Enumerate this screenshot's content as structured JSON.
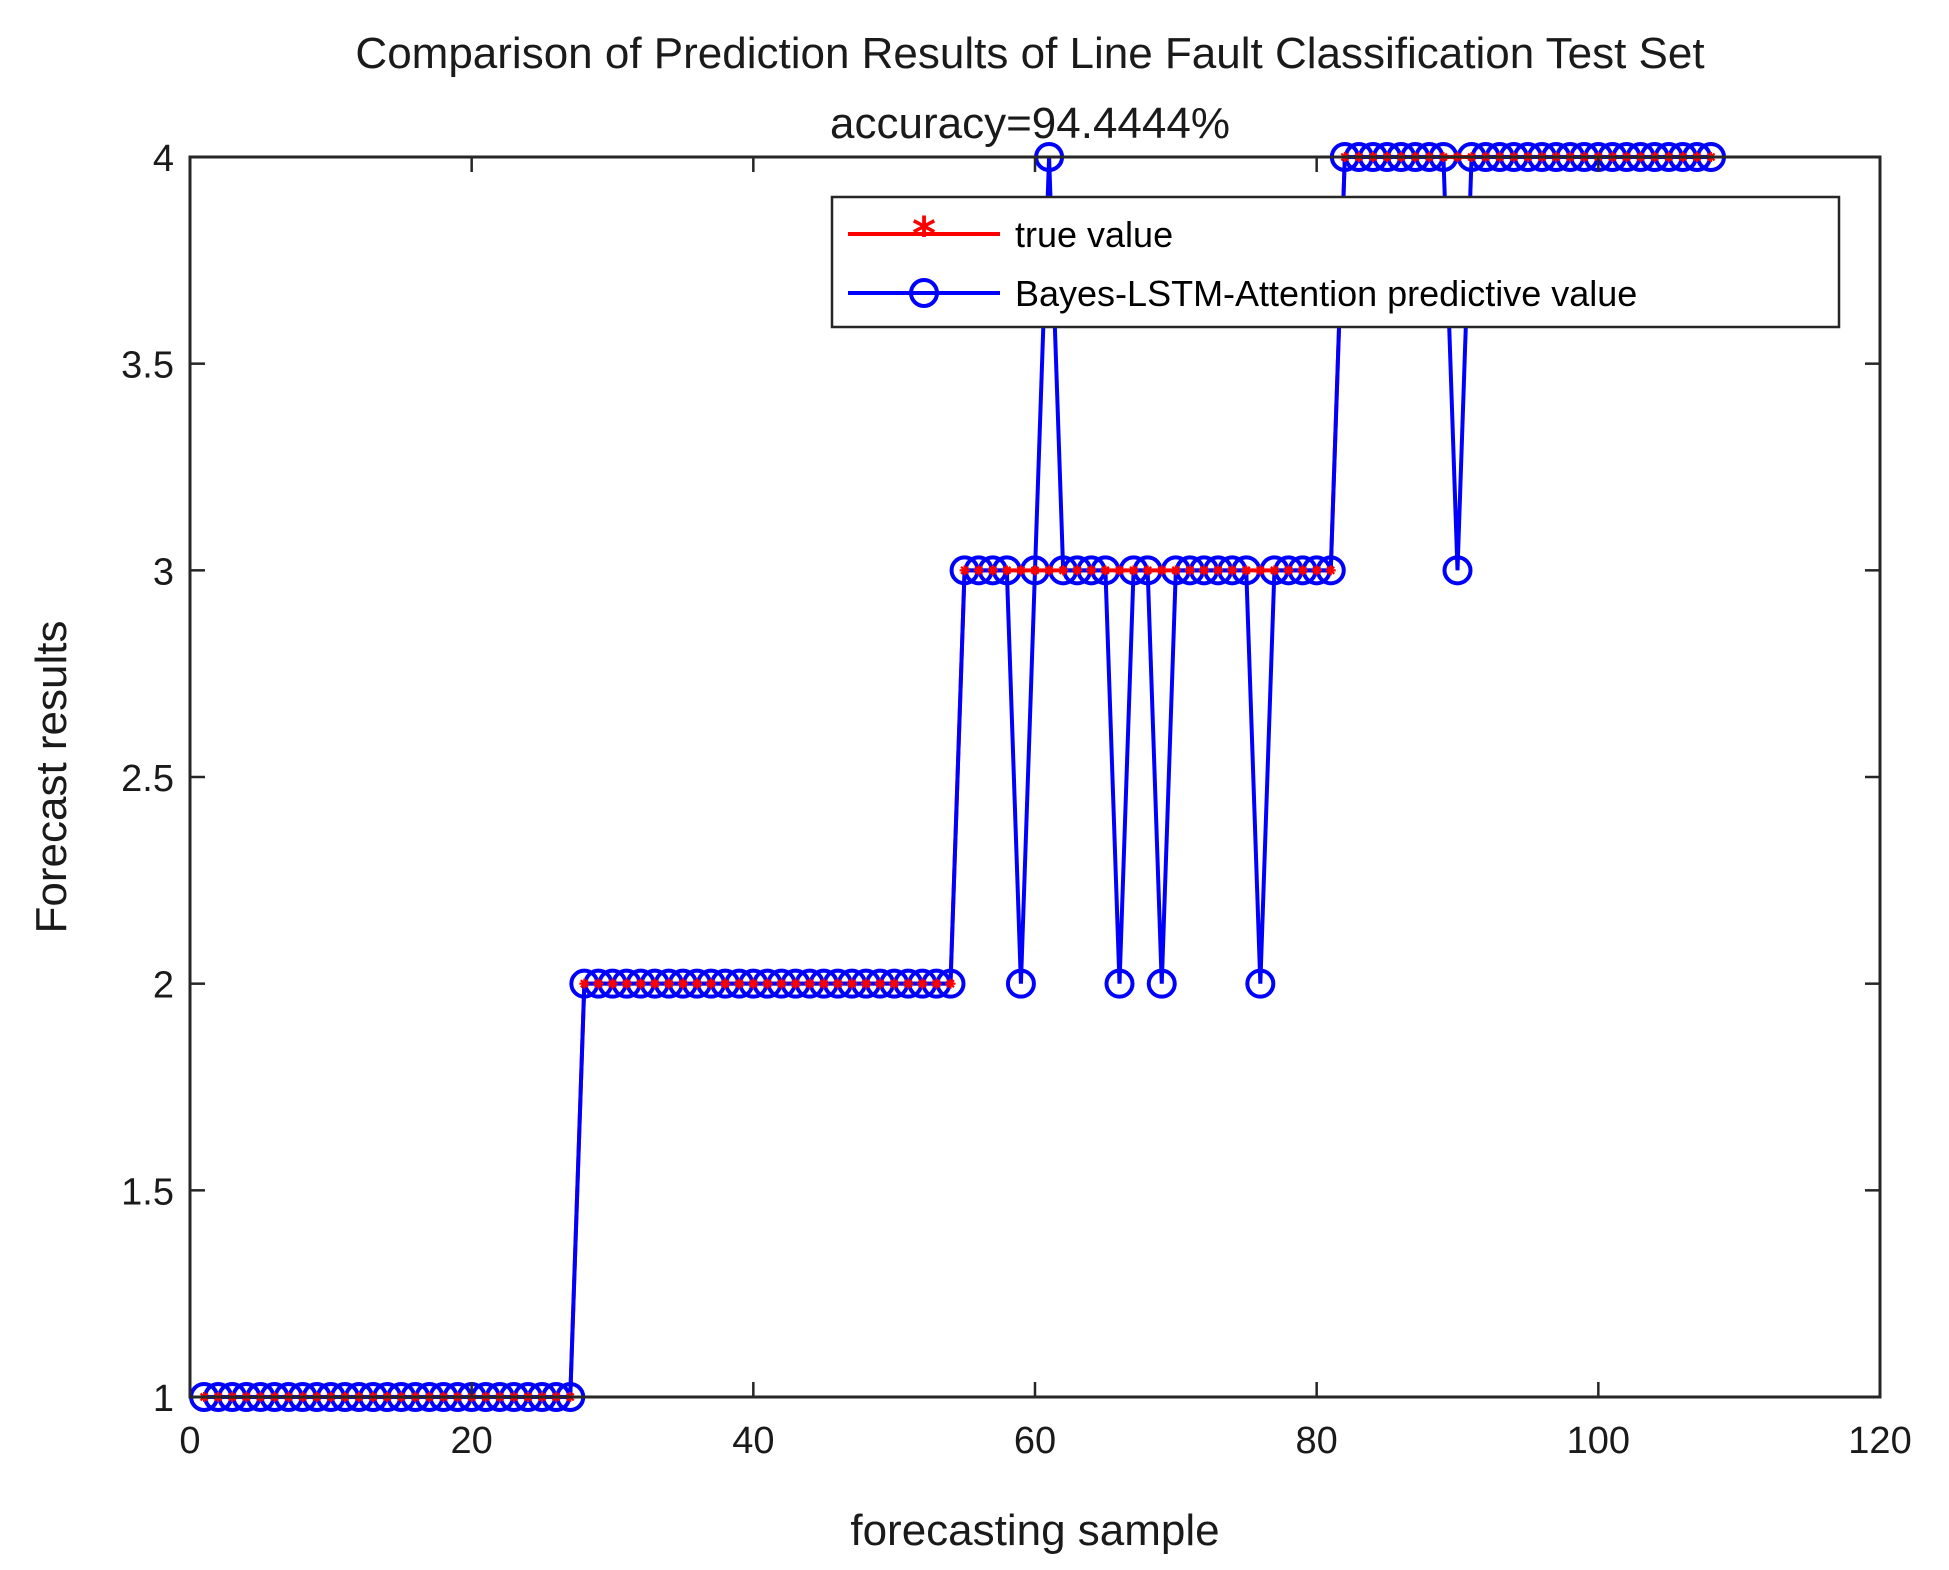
{
  "chart_data": {
    "type": "line",
    "title": "Comparison of Prediction Results of Line Fault Classification Test Set",
    "subtitle": "accuracy=94.4444%",
    "xlabel": "forecasting sample",
    "ylabel": "Forecast results",
    "xlim": [
      0,
      120
    ],
    "ylim": [
      1,
      4
    ],
    "xticks": [
      0,
      20,
      40,
      60,
      80,
      100,
      120
    ],
    "yticks": [
      1,
      1.5,
      2,
      2.5,
      3,
      3.5,
      4
    ],
    "xtick_labels": [
      "0",
      "20",
      "40",
      "60",
      "80",
      "100",
      "120"
    ],
    "ytick_labels": [
      "1",
      "1.5",
      "2",
      "2.5",
      "3",
      "3.5",
      "4"
    ],
    "grid": false,
    "legend_position": "top-right",
    "x": [
      1,
      2,
      3,
      4,
      5,
      6,
      7,
      8,
      9,
      10,
      11,
      12,
      13,
      14,
      15,
      16,
      17,
      18,
      19,
      20,
      21,
      22,
      23,
      24,
      25,
      26,
      27,
      28,
      29,
      30,
      31,
      32,
      33,
      34,
      35,
      36,
      37,
      38,
      39,
      40,
      41,
      42,
      43,
      44,
      45,
      46,
      47,
      48,
      49,
      50,
      51,
      52,
      53,
      54,
      55,
      56,
      57,
      58,
      59,
      60,
      61,
      62,
      63,
      64,
      65,
      66,
      67,
      68,
      69,
      70,
      71,
      72,
      73,
      74,
      75,
      76,
      77,
      78,
      79,
      80,
      81,
      82,
      83,
      84,
      85,
      86,
      87,
      88,
      89,
      90,
      91,
      92,
      93,
      94,
      95,
      96,
      97,
      98,
      99,
      100,
      101,
      102,
      103,
      104,
      105,
      106,
      107,
      108
    ],
    "series": [
      {
        "name": "true value",
        "color": "#ff0000",
        "marker": "asterisk",
        "values": [
          1,
          1,
          1,
          1,
          1,
          1,
          1,
          1,
          1,
          1,
          1,
          1,
          1,
          1,
          1,
          1,
          1,
          1,
          1,
          1,
          1,
          1,
          1,
          1,
          1,
          1,
          1,
          2,
          2,
          2,
          2,
          2,
          2,
          2,
          2,
          2,
          2,
          2,
          2,
          2,
          2,
          2,
          2,
          2,
          2,
          2,
          2,
          2,
          2,
          2,
          2,
          2,
          2,
          2,
          3,
          3,
          3,
          3,
          3,
          3,
          3,
          3,
          3,
          3,
          3,
          3,
          3,
          3,
          3,
          3,
          3,
          3,
          3,
          3,
          3,
          3,
          3,
          3,
          3,
          3,
          3,
          4,
          4,
          4,
          4,
          4,
          4,
          4,
          4,
          4,
          4,
          4,
          4,
          4,
          4,
          4,
          4,
          4,
          4,
          4,
          4,
          4,
          4,
          4,
          4,
          4,
          4,
          4
        ]
      },
      {
        "name": "Bayes-LSTM-Attention predictive value",
        "color": "#0000ff",
        "marker": "circle",
        "values": [
          1,
          1,
          1,
          1,
          1,
          1,
          1,
          1,
          1,
          1,
          1,
          1,
          1,
          1,
          1,
          1,
          1,
          1,
          1,
          1,
          1,
          1,
          1,
          1,
          1,
          1,
          1,
          2,
          2,
          2,
          2,
          2,
          2,
          2,
          2,
          2,
          2,
          2,
          2,
          2,
          2,
          2,
          2,
          2,
          2,
          2,
          2,
          2,
          2,
          2,
          2,
          2,
          2,
          2,
          3,
          3,
          3,
          3,
          2,
          3,
          4,
          3,
          3,
          3,
          3,
          2,
          3,
          3,
          2,
          3,
          3,
          3,
          3,
          3,
          3,
          2,
          3,
          3,
          3,
          3,
          3,
          4,
          4,
          4,
          4,
          4,
          4,
          4,
          4,
          3,
          4,
          4,
          4,
          4,
          4,
          4,
          4,
          4,
          4,
          4,
          4,
          4,
          4,
          4,
          4,
          4,
          4,
          4
        ]
      }
    ]
  }
}
